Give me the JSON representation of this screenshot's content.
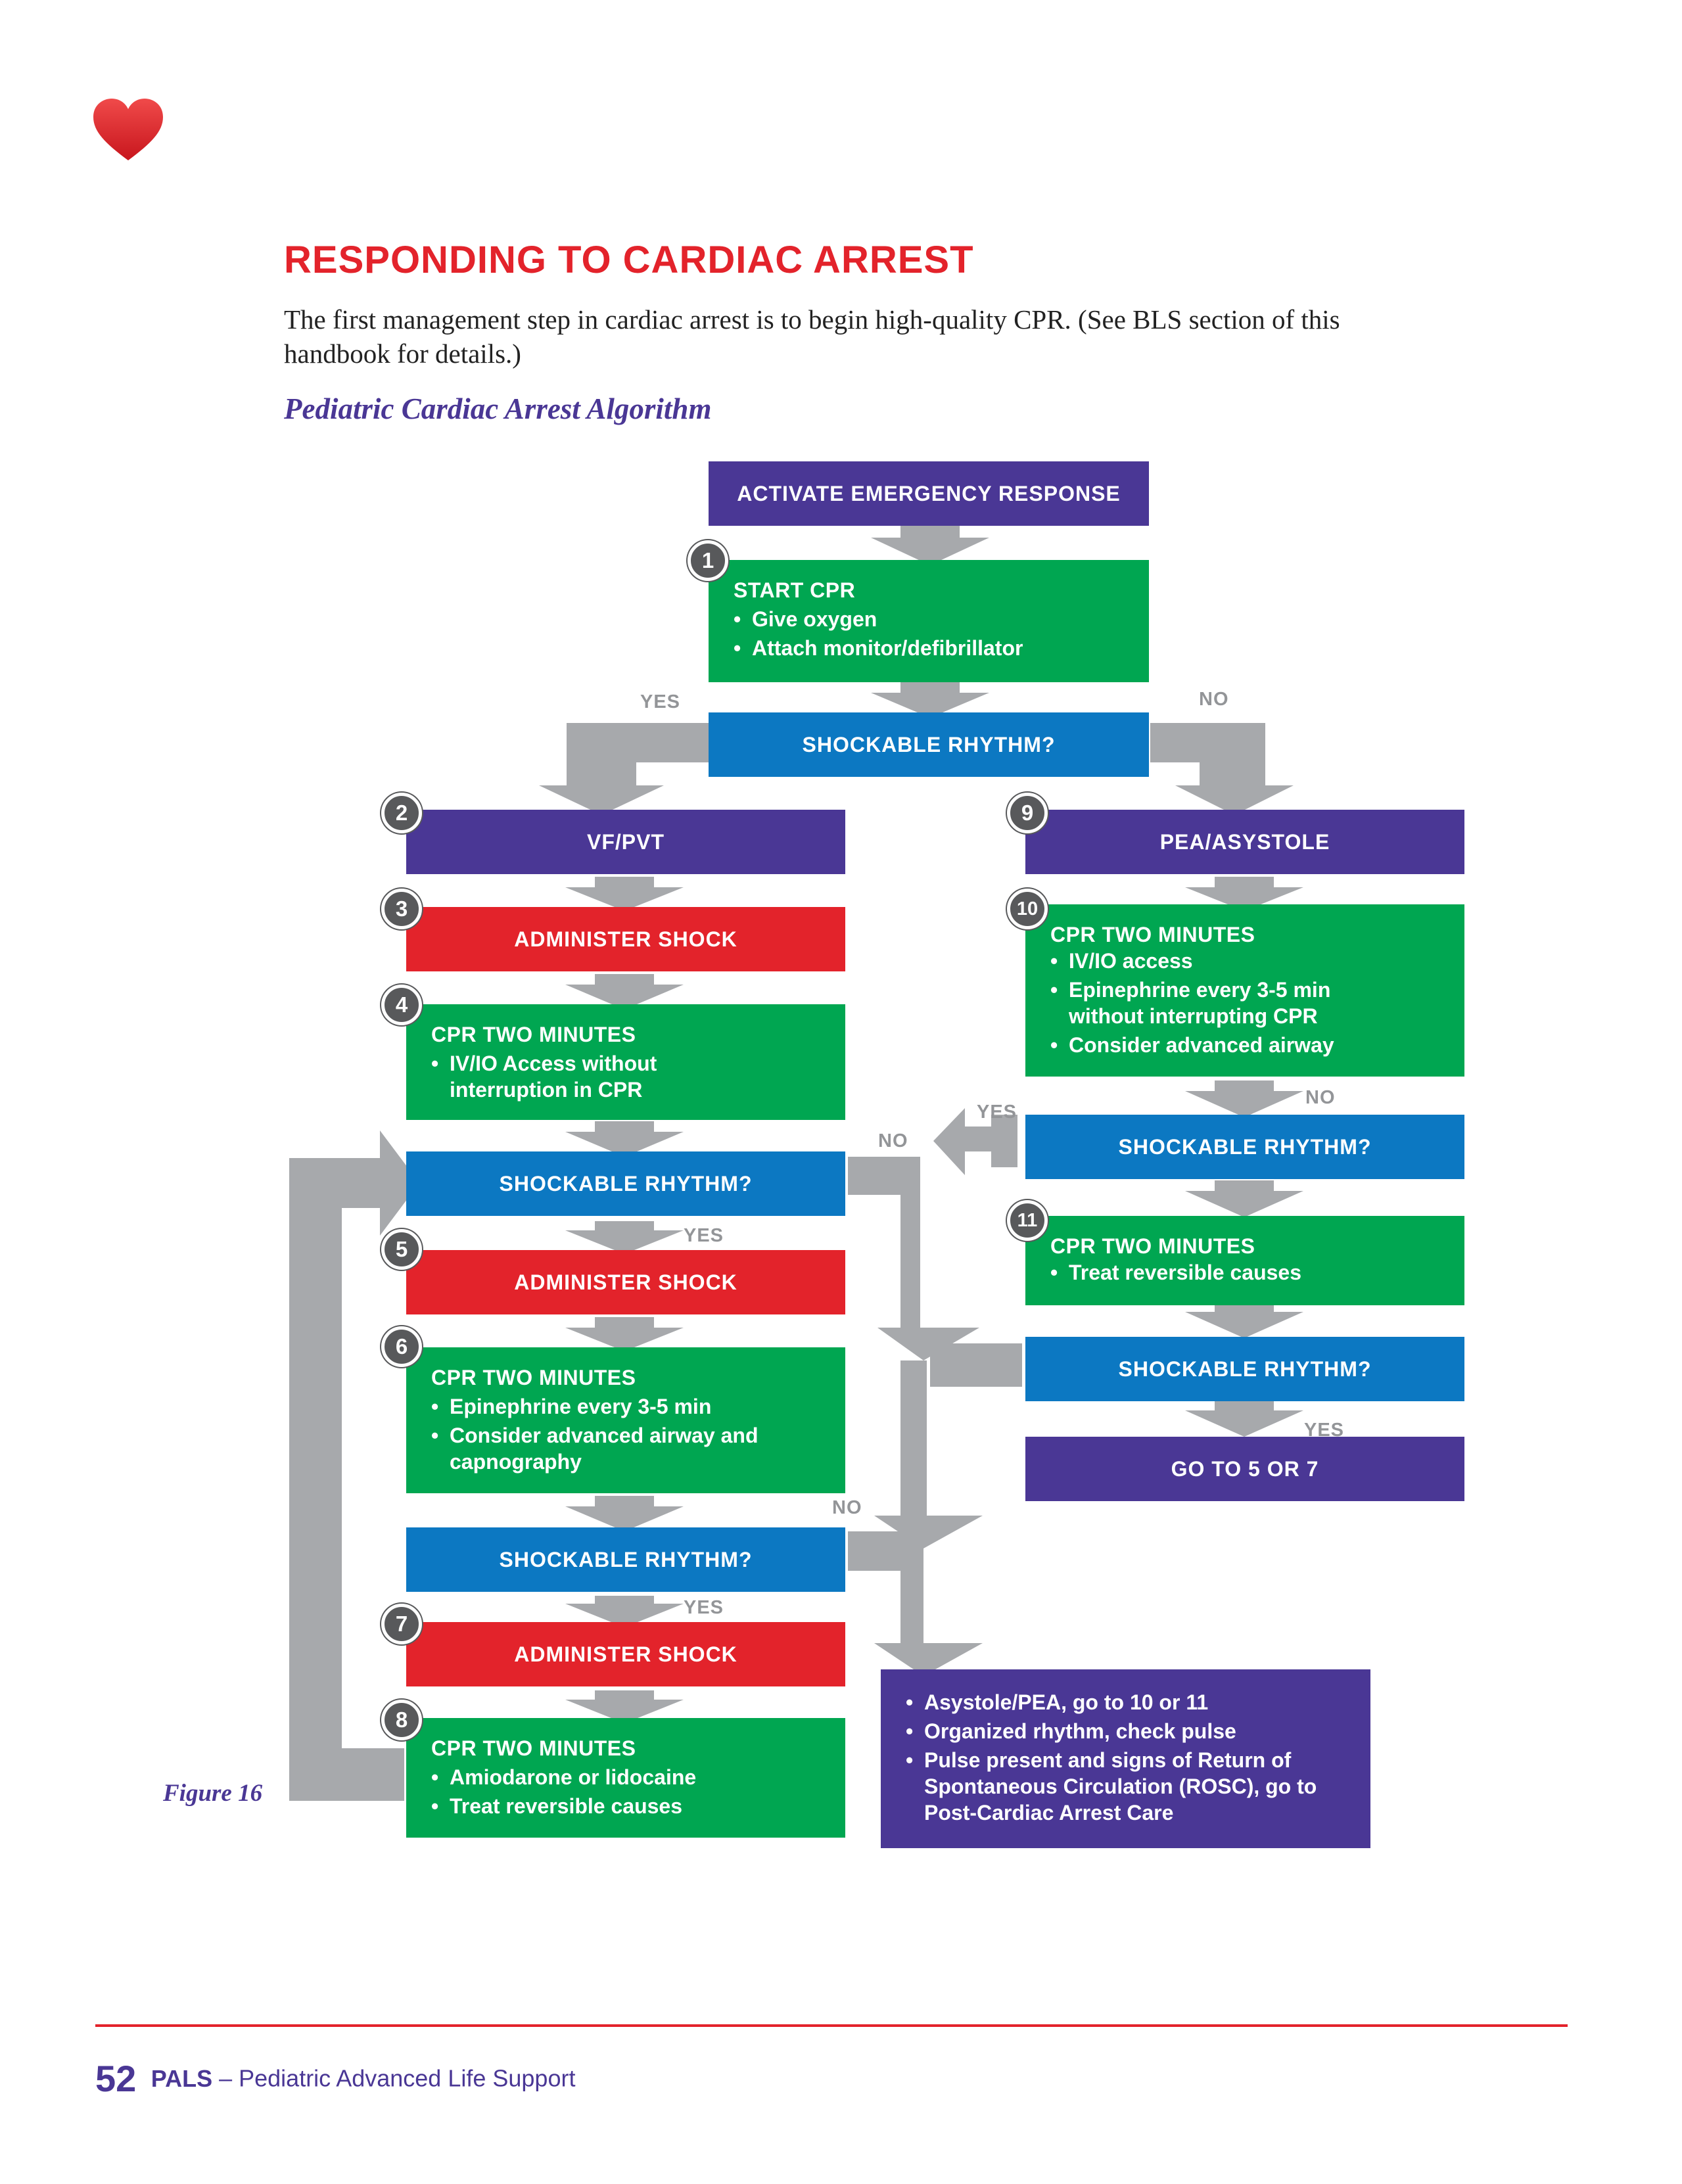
{
  "header": {
    "heart_icon": "heart-icon",
    "title": "RESPONDING TO CARDIAC ARREST",
    "intro": "The first management step in cardiac arrest is to begin high-quality CPR. (See BLS section of this handbook for details.)",
    "subtitle": "Pediatric Cardiac Arrest Algorithm"
  },
  "colors": {
    "purple": "#4a3795",
    "green": "#00a651",
    "blue": "#0c78c2",
    "red": "#e3232b",
    "arrow_gray": "#a7a9ac",
    "badge_gray": "#58595b"
  },
  "algorithm": {
    "activate": "ACTIVATE EMERGENCY RESPONSE",
    "start": {
      "step": "1",
      "title": "START CPR",
      "items": [
        "Give oxygen",
        "Attach monitor/defibrillator"
      ]
    },
    "shock_check_1": "SHOCKABLE RHYTHM?",
    "yes_1": "YES",
    "no_1": "NO",
    "vf": {
      "step": "2",
      "label": "VF/PVT"
    },
    "shock_3": {
      "step": "3",
      "label": "ADMINISTER SHOCK"
    },
    "cpr_4": {
      "step": "4",
      "title": "CPR TWO MINUTES",
      "items": [
        "IV/IO Access without interruption in CPR"
      ]
    },
    "shock_check_2": "SHOCKABLE RHYTHM?",
    "yes_2": "YES",
    "no_2": "NO",
    "shock_5": {
      "step": "5",
      "label": "ADMINISTER SHOCK"
    },
    "cpr_6": {
      "step": "6",
      "title": "CPR TWO MINUTES",
      "items": [
        "Epinephrine every 3-5 min",
        "Consider advanced airway and capnography"
      ]
    },
    "shock_check_3": "SHOCKABLE RHYTHM?",
    "yes_3": "YES",
    "no_3": "NO",
    "shock_7": {
      "step": "7",
      "label": "ADMINISTER SHOCK"
    },
    "cpr_8": {
      "step": "8",
      "title": "CPR TWO MINUTES",
      "items": [
        "Amiodarone or lidocaine",
        "Treat reversible causes"
      ]
    },
    "pea": {
      "step": "9",
      "label": "PEA/ASYSTOLE"
    },
    "cpr_10": {
      "step": "10",
      "title": "CPR TWO MINUTES",
      "items": [
        "IV/IO access",
        "Epinephrine every 3-5 min without interrupting CPR",
        "Consider advanced airway"
      ]
    },
    "shock_check_4": "SHOCKABLE RHYTHM?",
    "yes_4": "YES",
    "no_4": "NO",
    "cpr_11": {
      "step": "11",
      "title": "CPR TWO MINUTES",
      "items": [
        "Treat reversible causes"
      ]
    },
    "shock_check_5": "SHOCKABLE RHYTHM?",
    "yes_5": "YES",
    "goto": "GO TO 5 OR 7",
    "final": {
      "items": [
        "Asystole/PEA, go to 10 or 11",
        "Organized rhythm, check pulse",
        "Pulse present and signs of Return of Spontaneous Circulation (ROSC), go to Post-Cardiac Arrest Care"
      ]
    }
  },
  "figure_label": "Figure 16",
  "footer": {
    "page_number": "52",
    "abbr": "PALS",
    "text": " – Pediatric Advanced Life Support"
  }
}
